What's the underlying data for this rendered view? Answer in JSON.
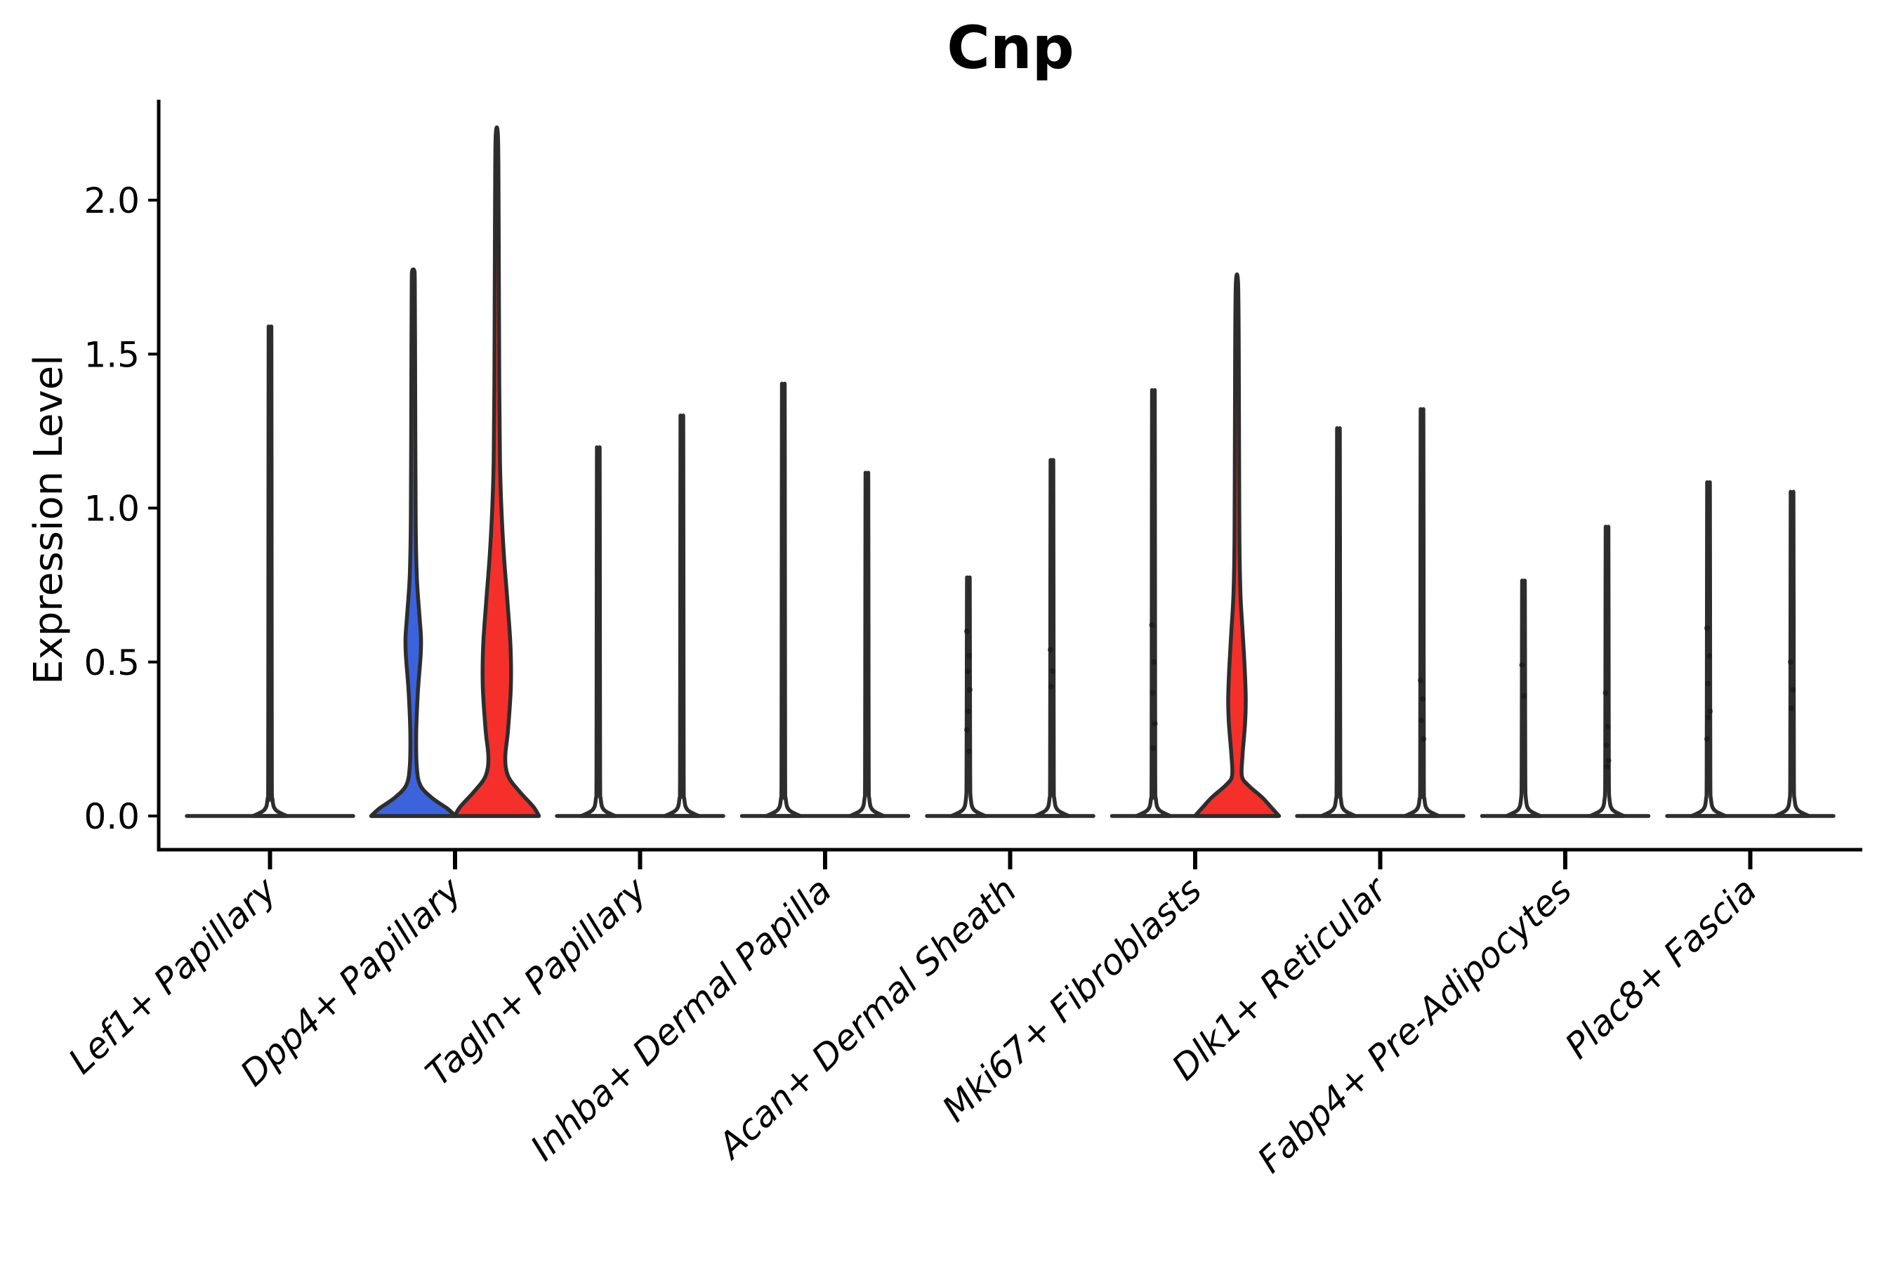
{
  "title": "Cnp",
  "y_axis": {
    "label": "Expression Level"
  },
  "chart_data": {
    "type": "violin",
    "title": "Cnp",
    "xlabel": "",
    "ylabel": "Expression Level",
    "ylim": [
      0,
      2.35
    ],
    "yticks": [
      0.0,
      0.5,
      1.0,
      1.5,
      2.0
    ],
    "ytick_labels": [
      "0.0",
      "0.5",
      "1.0",
      "1.5",
      "2.0"
    ],
    "grid": false,
    "legend": "none",
    "categories": [
      "Lef1+ Papillary",
      "Dpp4+ Papillary",
      "Tagln+ Papillary",
      "Inhba+ Dermal Papilla",
      "Acan+ Dermal Sheath",
      "Mki67+ Fibroblasts",
      "Dlk1+ Reticular",
      "Fabp4+ Pre-Adipocytes",
      "Plac8+ Fascia"
    ],
    "colors": {
      "blue": "#3c63dc",
      "red": "#f5302a",
      "outline": "#2d2d2d",
      "axis": "#000000",
      "dot": "#1a1a1a"
    },
    "groups": [
      {
        "category": "Lef1+ Papillary",
        "violins": [
          {
            "pos": "center",
            "style": "spike",
            "max": 1.56,
            "dots": []
          }
        ]
      },
      {
        "category": "Dpp4+ Papillary",
        "violins": [
          {
            "pos": "left",
            "style": "filled",
            "fill": "blue",
            "max": 1.77,
            "dots": [],
            "profile": [
              [
                0,
                60
              ],
              [
                0.025,
                48
              ],
              [
                0.06,
                26
              ],
              [
                0.1,
                10
              ],
              [
                0.16,
                5
              ],
              [
                0.27,
                4.2
              ],
              [
                0.4,
                6.5
              ],
              [
                0.52,
                10.5
              ],
              [
                0.58,
                11
              ],
              [
                0.66,
                8.5
              ],
              [
                0.78,
                5
              ],
              [
                0.95,
                3.5
              ],
              [
                1.2,
                3
              ],
              [
                1.5,
                2.6
              ],
              [
                1.73,
                2.2
              ],
              [
                1.77,
                1.6
              ]
            ]
          },
          {
            "pos": "right",
            "style": "filled",
            "fill": "red",
            "max": 2.21,
            "dots": [],
            "profile": [
              [
                0,
                60
              ],
              [
                0.03,
                52
              ],
              [
                0.08,
                32
              ],
              [
                0.13,
                16
              ],
              [
                0.19,
                12
              ],
              [
                0.28,
                16
              ],
              [
                0.42,
                20
              ],
              [
                0.55,
                19.5
              ],
              [
                0.7,
                15
              ],
              [
                0.85,
                10
              ],
              [
                1.0,
                6.5
              ],
              [
                1.15,
                4.5
              ],
              [
                1.4,
                3.5
              ],
              [
                1.7,
                3
              ],
              [
                2.0,
                2.5
              ],
              [
                2.21,
                1.6
              ]
            ]
          }
        ]
      },
      {
        "category": "Tagln+ Papillary",
        "violins": [
          {
            "pos": "left",
            "style": "spike",
            "max": 1.18,
            "dots": []
          },
          {
            "pos": "right",
            "style": "spike",
            "max": 1.28,
            "dots": []
          }
        ]
      },
      {
        "category": "Inhba+ Dermal Papilla",
        "violins": [
          {
            "pos": "left",
            "style": "spike",
            "max": 1.38,
            "dots": []
          },
          {
            "pos": "right",
            "style": "spike",
            "max": 1.1,
            "dots": []
          }
        ]
      },
      {
        "category": "Acan+ Dermal Sheath",
        "violins": [
          {
            "pos": "left",
            "style": "spike",
            "max": 0.77,
            "dots": [
              0.6,
              0.52,
              0.47,
              0.41,
              0.34,
              0.28,
              0.21
            ]
          },
          {
            "pos": "right",
            "style": "spike",
            "max": 1.14,
            "dots": [
              0.54,
              0.47,
              0.42
            ]
          }
        ]
      },
      {
        "category": "Mki67+ Fibroblasts",
        "violins": [
          {
            "pos": "left",
            "style": "spike",
            "max": 1.36,
            "dots": [
              0.62,
              0.5,
              0.4,
              0.3,
              0.22
            ]
          },
          {
            "pos": "right",
            "style": "filled",
            "fill": "red",
            "max": 1.73,
            "dots": [],
            "profile": [
              [
                0,
                60
              ],
              [
                0.025,
                50
              ],
              [
                0.06,
                36
              ],
              [
                0.1,
                16
              ],
              [
                0.13,
                7
              ],
              [
                0.2,
                8
              ],
              [
                0.3,
                11.5
              ],
              [
                0.38,
                12.5
              ],
              [
                0.48,
                11
              ],
              [
                0.6,
                8
              ],
              [
                0.72,
                5
              ],
              [
                0.9,
                3.5
              ],
              [
                1.2,
                3
              ],
              [
                1.5,
                2.6
              ],
              [
                1.73,
                1.6
              ]
            ]
          }
        ]
      },
      {
        "category": "Dlk1+ Reticular",
        "violins": [
          {
            "pos": "left",
            "style": "spike",
            "max": 1.24,
            "dots": []
          },
          {
            "pos": "right",
            "style": "spike",
            "max": 1.3,
            "dots": [
              0.44,
              0.38,
              0.31,
              0.25
            ]
          }
        ]
      },
      {
        "category": "Fabp4+ Pre-Adipocytes",
        "violins": [
          {
            "pos": "left",
            "style": "spike",
            "max": 0.76,
            "dots": [
              0.49,
              0.39
            ]
          },
          {
            "pos": "right",
            "style": "spike",
            "max": 0.93,
            "dots": [
              0.4,
              0.29,
              0.23,
              0.18,
              0.16
            ]
          }
        ]
      },
      {
        "category": "Plac8+ Fascia",
        "violins": [
          {
            "pos": "left",
            "style": "spike",
            "max": 1.07,
            "dots": [
              0.61,
              0.52,
              0.43,
              0.34,
              0.32,
              0.25
            ]
          },
          {
            "pos": "right",
            "style": "spike",
            "max": 1.04,
            "dots": [
              0.5,
              0.41,
              0.35
            ]
          }
        ]
      }
    ]
  }
}
